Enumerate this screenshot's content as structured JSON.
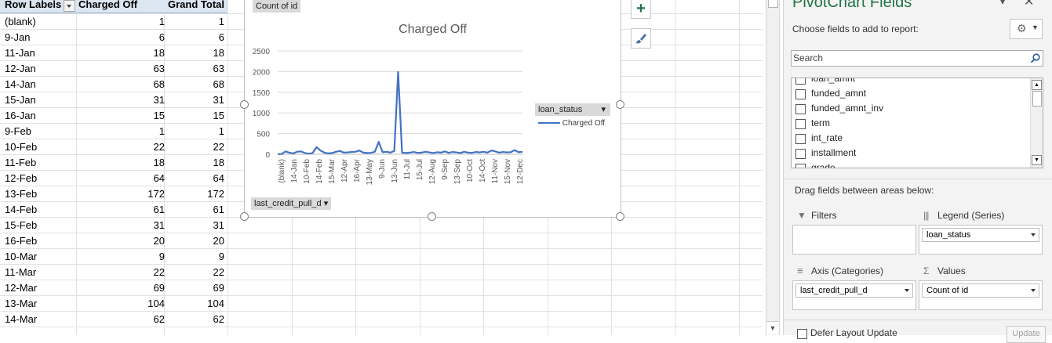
{
  "pivot_table": {
    "header": {
      "row_labels": "Row Labels",
      "charged_off": "Charged Off",
      "grand_total": "Grand Total"
    },
    "rows": [
      {
        "label": "(blank)",
        "charged_off": "1",
        "grand_total": "1"
      },
      {
        "label": "9-Jan",
        "charged_off": "6",
        "grand_total": "6"
      },
      {
        "label": "11-Jan",
        "charged_off": "18",
        "grand_total": "18"
      },
      {
        "label": "12-Jan",
        "charged_off": "63",
        "grand_total": "63"
      },
      {
        "label": "14-Jan",
        "charged_off": "68",
        "grand_total": "68"
      },
      {
        "label": "15-Jan",
        "charged_off": "31",
        "grand_total": "31"
      },
      {
        "label": "16-Jan",
        "charged_off": "15",
        "grand_total": "15"
      },
      {
        "label": "9-Feb",
        "charged_off": "1",
        "grand_total": "1"
      },
      {
        "label": "10-Feb",
        "charged_off": "22",
        "grand_total": "22"
      },
      {
        "label": "11-Feb",
        "charged_off": "18",
        "grand_total": "18"
      },
      {
        "label": "12-Feb",
        "charged_off": "64",
        "grand_total": "64"
      },
      {
        "label": "13-Feb",
        "charged_off": "172",
        "grand_total": "172"
      },
      {
        "label": "14-Feb",
        "charged_off": "61",
        "grand_total": "61"
      },
      {
        "label": "15-Feb",
        "charged_off": "31",
        "grand_total": "31"
      },
      {
        "label": "16-Feb",
        "charged_off": "20",
        "grand_total": "20"
      },
      {
        "label": "10-Mar",
        "charged_off": "9",
        "grand_total": "9"
      },
      {
        "label": "11-Mar",
        "charged_off": "22",
        "grand_total": "22"
      },
      {
        "label": "12-Mar",
        "charged_off": "69",
        "grand_total": "69"
      },
      {
        "label": "13-Mar",
        "charged_off": "104",
        "grand_total": "104"
      },
      {
        "label": "14-Mar",
        "charged_off": "62",
        "grand_total": "62"
      }
    ]
  },
  "chart": {
    "values_pill": "Count of id",
    "axis_pill": "last_credit_pull_d",
    "legend_pill": "loan_status",
    "legend_entry": "Charged Off",
    "title": "Charged Off",
    "line_color": "#4472c4",
    "y_ticks": [
      "0",
      "500",
      "1000",
      "1500",
      "2000",
      "2500"
    ],
    "x_ticks": [
      "(blank)",
      "14-Jan",
      "10-Feb",
      "14-Feb",
      "15-Mar",
      "12-Apr",
      "16-Apr",
      "13-May",
      "9-Jun",
      "13-Jun",
      "11-Jul",
      "15-Jul",
      "12-Aug",
      "9-Sep",
      "13-Sep",
      "10-Oct",
      "14-Oct",
      "11-Nov",
      "15-Nov",
      "12-Dec"
    ]
  },
  "chart_data": {
    "type": "line",
    "title": "Charged Off",
    "xlabel": "",
    "ylabel": "",
    "ylim": [
      0,
      2500
    ],
    "grid": true,
    "legend": "right",
    "categories_shown": [
      "(blank)",
      "14-Jan",
      "10-Feb",
      "14-Feb",
      "15-Mar",
      "12-Apr",
      "16-Apr",
      "13-May",
      "9-Jun",
      "13-Jun",
      "11-Jul",
      "15-Jul",
      "12-Aug",
      "9-Sep",
      "13-Sep",
      "10-Oct",
      "14-Oct",
      "11-Nov",
      "15-Nov",
      "12-Dec"
    ],
    "series": [
      {
        "name": "Charged Off",
        "values": [
          1,
          6,
          68,
          40,
          18,
          63,
          68,
          31,
          15,
          30,
          172,
          90,
          40,
          20,
          30,
          60,
          80,
          40,
          45,
          55,
          60,
          90,
          40,
          30,
          35,
          60,
          300,
          50,
          60,
          40,
          80,
          1990,
          40,
          30,
          40,
          55,
          35,
          40,
          60,
          45,
          30,
          50,
          40,
          70,
          35,
          55,
          45,
          30,
          60,
          40,
          35,
          55,
          45,
          60,
          40,
          90,
          70,
          40,
          55,
          45,
          50,
          100,
          50,
          60
        ]
      }
    ]
  },
  "pane": {
    "title": "PivotChart Fields",
    "subtitle": "Choose fields to add to report:",
    "search_placeholder": "Search",
    "fields": [
      {
        "label": "loan_amnt"
      },
      {
        "label": "funded_amnt"
      },
      {
        "label": "funded_amnt_inv"
      },
      {
        "label": "term"
      },
      {
        "label": "int_rate"
      },
      {
        "label": "installment"
      },
      {
        "label": "grade"
      }
    ],
    "drag_hint": "Drag fields between areas below:",
    "areas": {
      "filters": {
        "label": "Filters"
      },
      "legend": {
        "label": "Legend (Series)",
        "item": "loan_status"
      },
      "axis": {
        "label": "Axis (Categories)",
        "item": "last_credit_pull_d"
      },
      "values": {
        "label": "Values",
        "item": "Count of id"
      }
    },
    "defer_label": "Defer Layout Update",
    "update_label": "Update"
  }
}
